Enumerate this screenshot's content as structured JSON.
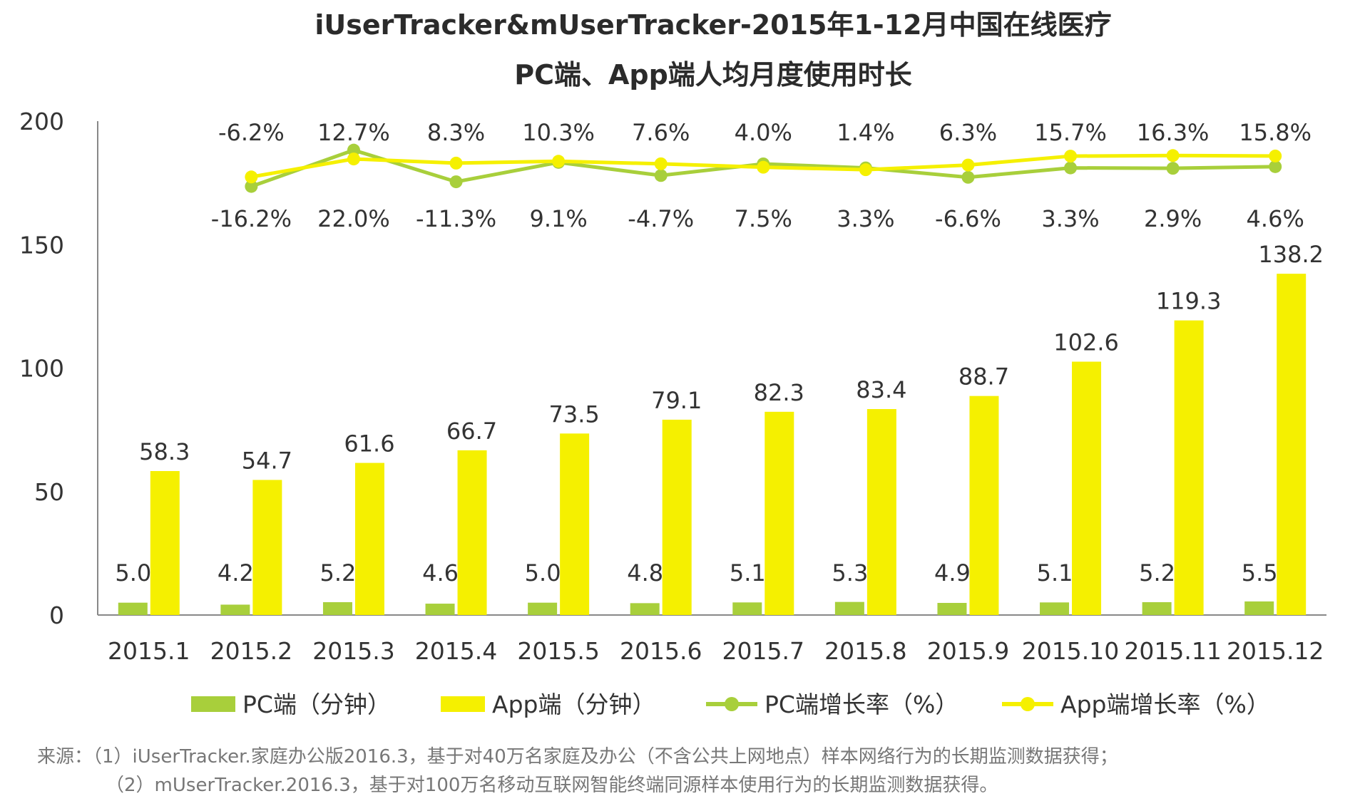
{
  "chart_data": {
    "type": "bar",
    "title": "iUserTracker&mUserTracker-2015年1-12月中国在线医疗",
    "subtitle": "PC端、App端人均月度使用时长",
    "categories": [
      "2015.1",
      "2015.2",
      "2015.3",
      "2015.4",
      "2015.5",
      "2015.6",
      "2015.7",
      "2015.8",
      "2015.9",
      "2015.10",
      "2015.11",
      "2015.12"
    ],
    "ylim": [
      0,
      200
    ],
    "yticks": [
      "0",
      "50",
      "100",
      "150",
      "200"
    ],
    "series": [
      {
        "name": "PC端（分钟）",
        "kind": "bar",
        "color": "#a8cf3b",
        "values": [
          5.0,
          4.2,
          5.2,
          4.6,
          5.0,
          4.8,
          5.1,
          5.3,
          4.9,
          5.1,
          5.2,
          5.5
        ],
        "labels": [
          "5.0",
          "4.2",
          "5.2",
          "4.6",
          "5.0",
          "4.8",
          "5.1",
          "5.3",
          "4.9",
          "5.1",
          "5.2",
          "5.5"
        ]
      },
      {
        "name": "App端（分钟）",
        "kind": "bar",
        "color": "#f5f000",
        "values": [
          58.3,
          54.7,
          61.6,
          66.7,
          73.5,
          79.1,
          82.3,
          83.4,
          88.7,
          102.6,
          119.3,
          138.2
        ],
        "labels": [
          "58.3",
          "54.7",
          "61.6",
          "66.7",
          "73.5",
          "79.1",
          "82.3",
          "83.4",
          "88.7",
          "102.6",
          "119.3",
          "138.2"
        ]
      },
      {
        "name": "PC端增长率（%）",
        "kind": "line",
        "color": "#a8cf3b",
        "values": [
          null,
          -16.2,
          22.0,
          -11.3,
          9.1,
          -4.7,
          7.5,
          3.3,
          -6.6,
          3.3,
          2.9,
          4.6
        ],
        "labels": [
          "",
          "-16.2%",
          "22.0%",
          "-11.3%",
          "9.1%",
          "-4.7%",
          "7.5%",
          "3.3%",
          "-6.6%",
          "3.3%",
          "2.9%",
          "4.6%"
        ]
      },
      {
        "name": "App端增长率（%）",
        "kind": "line",
        "color": "#f5f000",
        "values": [
          null,
          -6.2,
          12.7,
          8.3,
          10.3,
          7.6,
          4.0,
          1.4,
          6.3,
          15.7,
          16.3,
          15.8
        ],
        "labels": [
          "",
          "-6.2%",
          "12.7%",
          "8.3%",
          "10.3%",
          "7.6%",
          "4.0%",
          "1.4%",
          "6.3%",
          "15.7%",
          "16.3%",
          "15.8%"
        ]
      }
    ],
    "legend_position": "bottom",
    "source": [
      "来源：（1）iUserTracker.家庭办公版2016.3，基于对40万名家庭及办公（不含公共上网地点）样本网络行为的长期监测数据获得；",
      "（2）mUserTracker.2016.3，基于对100万名移动互联网智能终端同源样本使用行为的长期监测数据获得。"
    ]
  }
}
